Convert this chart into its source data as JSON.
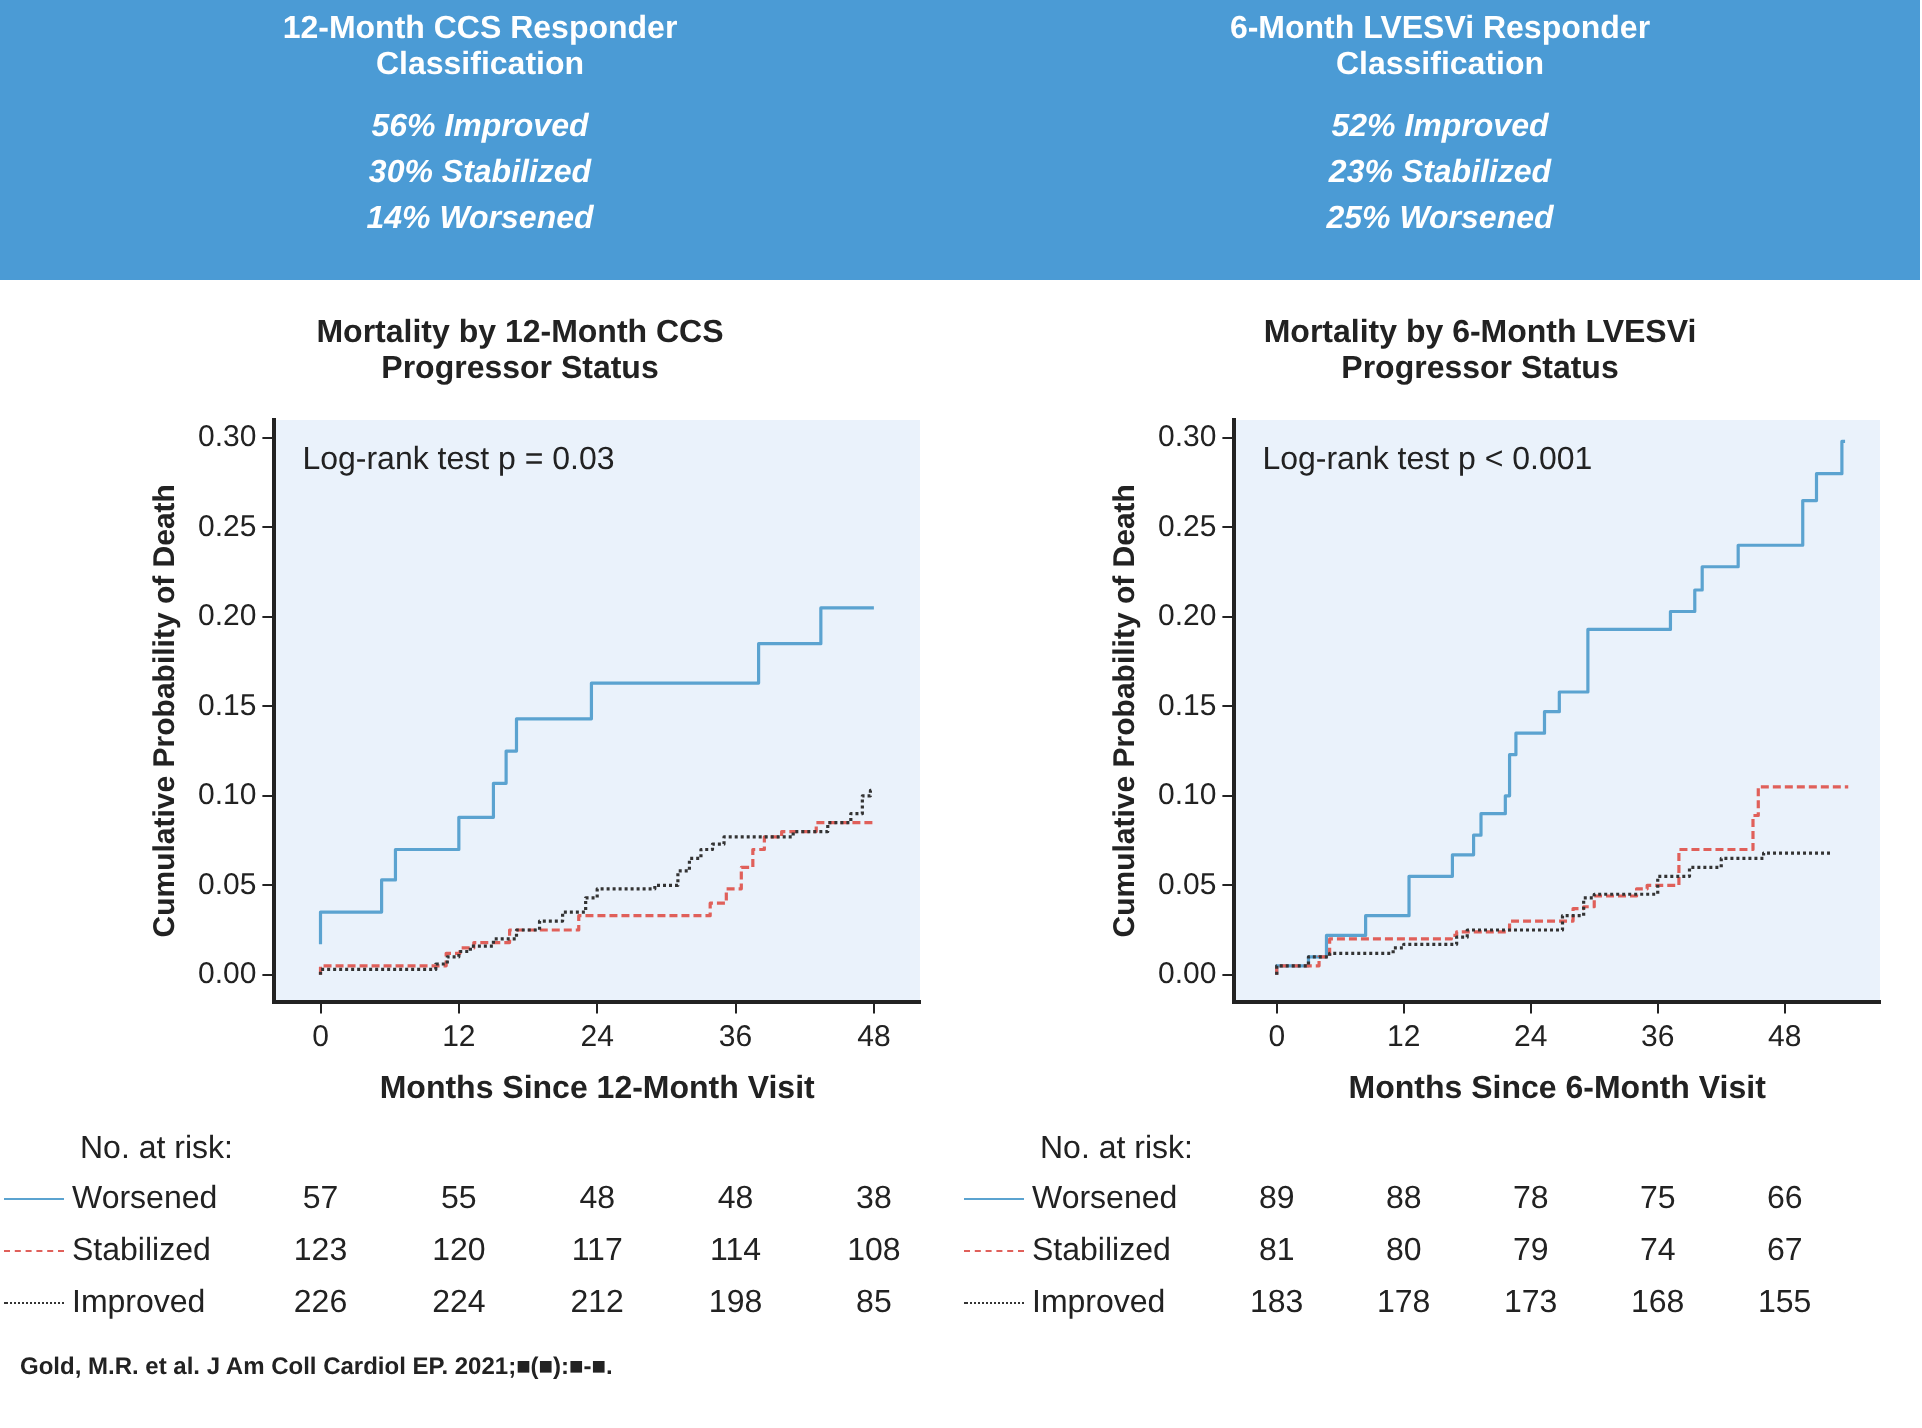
{
  "chart_data": [
    {
      "type": "step",
      "title": "Mortality by 12-Month CCS Progressor Status",
      "xlabel": "Months Since 12-Month Visit",
      "ylabel": "Cumulative Probability of Death",
      "xlim": [
        -4,
        52
      ],
      "ylim": [
        -0.015,
        0.31
      ],
      "xticks": [
        0,
        12,
        24,
        36,
        48
      ],
      "yticks": [
        {
          "value": 0,
          "label": "0.00"
        },
        {
          "value": 0.05,
          "label": "0.05"
        },
        {
          "value": 0.1,
          "label": "0.10"
        },
        {
          "value": 0.15,
          "label": "0.15"
        },
        {
          "value": 0.2,
          "label": "0.20"
        },
        {
          "value": 0.25,
          "label": "0.25"
        },
        {
          "value": 0.3,
          "label": "0.30"
        }
      ],
      "grid": false,
      "legend": "bottom",
      "marker": "none",
      "series": [
        {
          "name": "Worsened",
          "color": "#5ba3d0",
          "line_style": "solid",
          "x": [
            0,
            5.3,
            6.5,
            12,
            15,
            16.1,
            17,
            23.5,
            38,
            43.4,
            44.4,
            48
          ],
          "values": [
            0.017,
            0.035,
            0.053,
            0.07,
            0.088,
            0.107,
            0.125,
            0.143,
            0.163,
            0.185,
            0.205,
            0.205
          ]
        },
        {
          "name": "Stabilized",
          "color": "#e0605a",
          "line_style": "dashed",
          "x": [
            0,
            10.9,
            12.1,
            13.3,
            16.4,
            22.4,
            33.8,
            35.2,
            36.5,
            37.5,
            38.5,
            40,
            43,
            44,
            48
          ],
          "values": [
            0,
            0.005,
            0.012,
            0.015,
            0.018,
            0.025,
            0.033,
            0.04,
            0.048,
            0.06,
            0.07,
            0.077,
            0.08,
            0.085,
            0.085
          ]
        },
        {
          "name": "Improved",
          "color": "#333333",
          "line_style": "dotted",
          "x": [
            0,
            10,
            11,
            12,
            13,
            15,
            17,
            19,
            21,
            23,
            24,
            29,
            31,
            32,
            33,
            34,
            35,
            41,
            44,
            46,
            47,
            47.7,
            48
          ],
          "values": [
            0,
            0.003,
            0.006,
            0.01,
            0.013,
            0.016,
            0.02,
            0.025,
            0.03,
            0.035,
            0.043,
            0.048,
            0.05,
            0.058,
            0.065,
            0.07,
            0.073,
            0.077,
            0.08,
            0.085,
            0.09,
            0.1,
            0.103
          ]
        }
      ],
      "annotations": [
        "12-Month CCS Responder Classification",
        "56% Improved",
        "30% Stabilized",
        "14% Worsened",
        "Log-rank test p = 0.03",
        "No. at risk:",
        "57",
        "55",
        "48",
        "48",
        "38",
        "123",
        "120",
        "117",
        "114",
        "108",
        "226",
        "224",
        "212",
        "198",
        "85",
        "Gold, M.R. et al. J Am Coll Cardiol EP. 2021;■(■):■-■."
      ]
    },
    {
      "type": "step",
      "title": "Mortality by 6-Month LVESVi Progressor Status",
      "xlabel": "Months Since 6-Month Visit",
      "ylabel": "Cumulative Probability of Death",
      "xlim": [
        -4,
        57
      ],
      "ylim": [
        -0.015,
        0.31
      ],
      "xticks": [
        0,
        12,
        24,
        36,
        48
      ],
      "yticks": [
        {
          "value": 0,
          "label": "0.00"
        },
        {
          "value": 0.05,
          "label": "0.05"
        },
        {
          "value": 0.1,
          "label": "0.10"
        },
        {
          "value": 0.15,
          "label": "0.15"
        },
        {
          "value": 0.2,
          "label": "0.20"
        },
        {
          "value": 0.25,
          "label": "0.25"
        },
        {
          "value": 0.3,
          "label": "0.30"
        }
      ],
      "grid": false,
      "legend": "bottom",
      "marker": "none",
      "series": [
        {
          "name": "Worsened",
          "color": "#5ba3d0",
          "line_style": "solid",
          "x": [
            0,
            3,
            4.7,
            8.4,
            12.5,
            16.6,
            18.6,
            19.3,
            21.6,
            22,
            22.6,
            25.3,
            26.7,
            29.4,
            37.2,
            39.5,
            40.2,
            43.6,
            49.7,
            51,
            53.4,
            53.7
          ],
          "values": [
            0,
            0.005,
            0.01,
            0.022,
            0.033,
            0.055,
            0.067,
            0.078,
            0.09,
            0.1,
            0.123,
            0.135,
            0.147,
            0.158,
            0.193,
            0.203,
            0.215,
            0.228,
            0.24,
            0.265,
            0.28,
            0.298
          ]
        },
        {
          "name": "Stabilized",
          "color": "#e0605a",
          "line_style": "dashed",
          "x": [
            0,
            4,
            5,
            16.5,
            17,
            22,
            28,
            29,
            30,
            34,
            35,
            38,
            45,
            45.5,
            49.7,
            54
          ],
          "values": [
            0,
            0.005,
            0.01,
            0.02,
            0.022,
            0.024,
            0.03,
            0.037,
            0.038,
            0.044,
            0.048,
            0.05,
            0.07,
            0.089,
            0.105,
            0.105
          ]
        },
        {
          "name": "Improved",
          "color": "#333333",
          "line_style": "dotted",
          "x": [
            0,
            3,
            5,
            11,
            12,
            17,
            18,
            27,
            29,
            30,
            36,
            39,
            42,
            46,
            47,
            52.5
          ],
          "values": [
            0,
            0.005,
            0.01,
            0.012,
            0.015,
            0.017,
            0.021,
            0.025,
            0.033,
            0.043,
            0.045,
            0.055,
            0.06,
            0.065,
            0.068,
            0.068
          ]
        }
      ],
      "annotations": [
        "6-Month LVESVi Responder Classification",
        "52% Improved",
        "23% Stabilized",
        "25% Worsened",
        "Log-rank test p < 0.001",
        "No. at risk:",
        "89",
        "88",
        "78",
        "75",
        "66",
        "81",
        "80",
        "79",
        "74",
        "67",
        "183",
        "178",
        "173",
        "168",
        "155"
      ]
    }
  ]
}
